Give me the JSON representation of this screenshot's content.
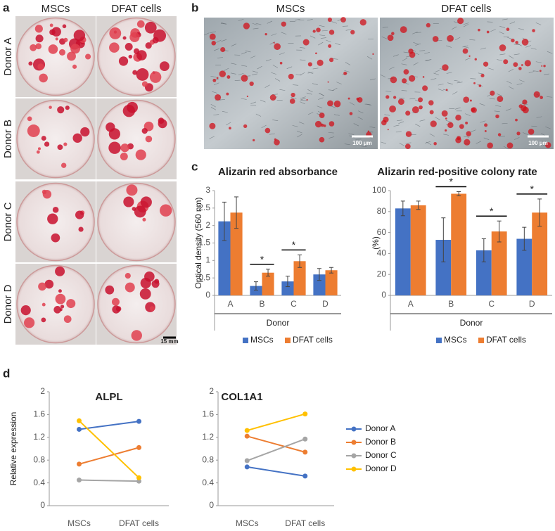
{
  "panel_labels": [
    "a",
    "b",
    "c",
    "d"
  ],
  "panel_a": {
    "columns": [
      "MSCs",
      "DFAT cells"
    ],
    "rows": [
      "Donor A",
      "Donor B",
      "Donor C",
      "Donor D"
    ],
    "scale_bar": "15 mm"
  },
  "panel_b": {
    "columns": [
      "MSCs",
      "DFAT cells"
    ],
    "scale_bar": "100 μm"
  },
  "chart_data": [
    {
      "type": "bar",
      "title": "Alizarin red absorbance",
      "ylabel": "Optical density (560 nm)",
      "xlabel": "Donor",
      "categories": [
        "A",
        "B",
        "C",
        "D"
      ],
      "ylim": [
        0,
        3
      ],
      "yticks": [
        0,
        0.5,
        1,
        1.5,
        2,
        2.5,
        3
      ],
      "series": [
        {
          "name": "MSCs",
          "color": "#4472c4",
          "values": [
            2.12,
            0.27,
            0.4,
            0.6
          ],
          "errors": [
            0.55,
            0.12,
            0.15,
            0.17
          ]
        },
        {
          "name": "DFAT cells",
          "color": "#ed7d31",
          "values": [
            2.37,
            0.65,
            0.98,
            0.72
          ],
          "errors": [
            0.45,
            0.1,
            0.18,
            0.08
          ]
        }
      ],
      "significance": [
        null,
        "*",
        "*",
        null
      ],
      "legend": "bottom"
    },
    {
      "type": "bar",
      "title": "Alizarin red-positive colony rate",
      "ylabel": "(%)",
      "xlabel": "Donor",
      "categories": [
        "A",
        "B",
        "C",
        "D"
      ],
      "ylim": [
        0,
        100
      ],
      "yticks": [
        0,
        20,
        40,
        60,
        80,
        100
      ],
      "series": [
        {
          "name": "MSCs",
          "color": "#4472c4",
          "values": [
            83,
            53,
            43,
            54
          ],
          "errors": [
            7,
            21,
            11,
            11
          ]
        },
        {
          "name": "DFAT cells",
          "color": "#ed7d31",
          "values": [
            86,
            97,
            61,
            79
          ],
          "errors": [
            4,
            2,
            10,
            13
          ]
        }
      ],
      "significance": [
        null,
        "*",
        "*",
        "*"
      ],
      "legend": "bottom"
    },
    {
      "type": "line",
      "title": "ALPL",
      "ylabel": "Relative expression",
      "categories": [
        "MSCs",
        "DFAT cells"
      ],
      "ylim": [
        0,
        2
      ],
      "yticks": [
        0,
        0.4,
        0.8,
        1.2,
        1.6,
        2
      ],
      "series": [
        {
          "name": "Donor A",
          "color": "#4472c4",
          "values": [
            1.34,
            1.48
          ]
        },
        {
          "name": "Donor B",
          "color": "#ed7d31",
          "values": [
            0.73,
            1.02
          ]
        },
        {
          "name": "Donor C",
          "color": "#a5a5a5",
          "values": [
            0.45,
            0.43
          ]
        },
        {
          "name": "Donor D",
          "color": "#ffc000",
          "values": [
            1.49,
            0.49
          ]
        }
      ]
    },
    {
      "type": "line",
      "title": "COL1A1",
      "categories": [
        "MSCs",
        "DFAT cells"
      ],
      "ylim": [
        0,
        2
      ],
      "yticks": [
        0,
        0.4,
        0.8,
        1.2,
        1.6,
        2
      ],
      "series": [
        {
          "name": "Donor A",
          "color": "#4472c4",
          "values": [
            0.68,
            0.52
          ]
        },
        {
          "name": "Donor B",
          "color": "#ed7d31",
          "values": [
            1.22,
            0.94
          ]
        },
        {
          "name": "Donor C",
          "color": "#a5a5a5",
          "values": [
            0.79,
            1.17
          ]
        },
        {
          "name": "Donor D",
          "color": "#ffc000",
          "values": [
            1.32,
            1.61
          ]
        }
      ],
      "legend": "right"
    }
  ]
}
